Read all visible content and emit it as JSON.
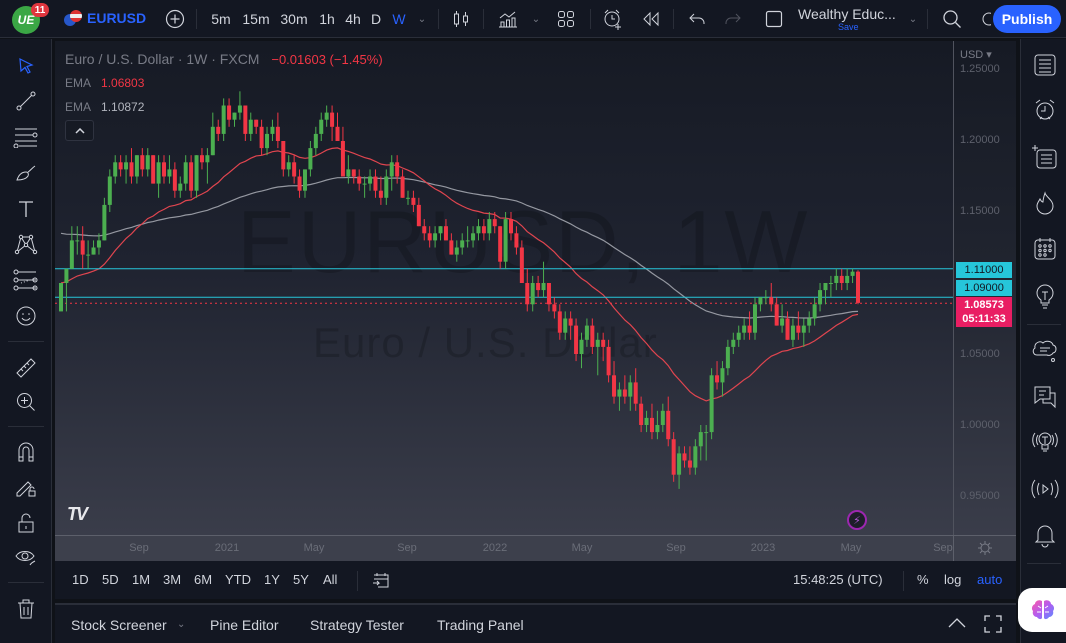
{
  "app": {
    "logo_text": "UE",
    "notifications": "11",
    "symbol": "EURUSD",
    "intervals": [
      "5m",
      "15m",
      "30m",
      "1h",
      "4h",
      "D",
      "W"
    ],
    "active_interval": "W",
    "layout_name": "Wealthy Educ...",
    "layout_save": "Save",
    "publish_label": "Publish"
  },
  "legend": {
    "title": "Euro / U.S. Dollar · 1W · FXCM",
    "change": "−0.01603 (−1.45%)",
    "ema1_label": "EMA",
    "ema1_value": "1.06803",
    "ema2_label": "EMA",
    "ema2_value": "1.10872",
    "collapse_glyph": "^"
  },
  "watermark": {
    "line1": "EURUSD, 1W",
    "line2": "Euro / U.S. Dollar"
  },
  "price_axis": {
    "currency": "USD ▾",
    "labels": [
      {
        "text": "1.25000",
        "y": 29
      },
      {
        "text": "1.20000",
        "y": 100
      },
      {
        "text": "1.15000",
        "y": 171
      },
      {
        "text": "1.05000",
        "y": 314
      },
      {
        "text": "1.00000",
        "y": 385
      },
      {
        "text": "0.95000",
        "y": 456
      }
    ],
    "tag_1110": "1.11000",
    "tag_1090": "1.09000",
    "current_price": "1.08573",
    "countdown": "05:11:33"
  },
  "time_axis": {
    "labels": [
      {
        "text": "Sep",
        "x": 84
      },
      {
        "text": "2021",
        "x": 172
      },
      {
        "text": "May",
        "x": 259
      },
      {
        "text": "Sep",
        "x": 352
      },
      {
        "text": "2022",
        "x": 440
      },
      {
        "text": "May",
        "x": 527
      },
      {
        "text": "Sep",
        "x": 621
      },
      {
        "text": "2023",
        "x": 708
      },
      {
        "text": "May",
        "x": 796
      },
      {
        "text": "Sep",
        "x": 888
      }
    ]
  },
  "range_bar": {
    "ranges": [
      "1D",
      "5D",
      "1M",
      "3M",
      "6M",
      "YTD",
      "1Y",
      "5Y",
      "All"
    ],
    "clock": "15:48:25 (UTC)",
    "percent": "%",
    "log": "log",
    "auto": "auto"
  },
  "bottom_panel": {
    "tabs": [
      "Stock Screener",
      "Pine Editor",
      "Strategy Tester",
      "Trading Panel"
    ]
  },
  "colors": {
    "up": "#4caf50",
    "down": "#f23645",
    "ema_fast": "#e0454f",
    "ema_slow": "#9598a1",
    "hline": "#26c6da",
    "accent": "#2962ff",
    "current_price": "#e91e63"
  },
  "chart_data": {
    "type": "candlestick",
    "title": "Euro / U.S. Dollar · 1W · FXCM",
    "ylim": [
      0.93,
      1.26
    ],
    "hlines": [
      1.11,
      1.09
    ],
    "current": 1.08573,
    "ema_fast_last": 1.06803,
    "ema_slow_last": 1.10872,
    "x_ticks": [
      "Sep",
      "2021",
      "May",
      "Sep",
      "2022",
      "May",
      "Sep",
      "2023",
      "May",
      "Sep"
    ],
    "candles": [
      [
        1.08,
        1.1,
        1.08,
        1.1
      ],
      [
        1.1,
        1.11,
        1.08,
        1.11
      ],
      [
        1.11,
        1.14,
        1.11,
        1.13
      ],
      [
        1.13,
        1.14,
        1.12,
        1.13
      ],
      [
        1.13,
        1.14,
        1.11,
        1.12
      ],
      [
        1.12,
        1.13,
        1.11,
        1.12
      ],
      [
        1.12,
        1.13,
        1.12,
        1.125
      ],
      [
        1.125,
        1.135,
        1.12,
        1.13
      ],
      [
        1.13,
        1.16,
        1.13,
        1.155
      ],
      [
        1.155,
        1.18,
        1.15,
        1.175
      ],
      [
        1.175,
        1.19,
        1.17,
        1.185
      ],
      [
        1.185,
        1.19,
        1.175,
        1.18
      ],
      [
        1.18,
        1.19,
        1.17,
        1.185
      ],
      [
        1.185,
        1.195,
        1.17,
        1.175
      ],
      [
        1.175,
        1.19,
        1.17,
        1.19
      ],
      [
        1.19,
        1.195,
        1.175,
        1.18
      ],
      [
        1.18,
        1.195,
        1.175,
        1.19
      ],
      [
        1.19,
        1.19,
        1.17,
        1.17
      ],
      [
        1.17,
        1.19,
        1.16,
        1.185
      ],
      [
        1.185,
        1.19,
        1.17,
        1.175
      ],
      [
        1.175,
        1.19,
        1.17,
        1.18
      ],
      [
        1.18,
        1.185,
        1.16,
        1.165
      ],
      [
        1.165,
        1.175,
        1.16,
        1.17
      ],
      [
        1.17,
        1.19,
        1.165,
        1.185
      ],
      [
        1.185,
        1.19,
        1.16,
        1.165
      ],
      [
        1.165,
        1.19,
        1.16,
        1.19
      ],
      [
        1.19,
        1.195,
        1.18,
        1.185
      ],
      [
        1.185,
        1.195,
        1.17,
        1.19
      ],
      [
        1.19,
        1.22,
        1.19,
        1.21
      ],
      [
        1.21,
        1.215,
        1.2,
        1.205
      ],
      [
        1.205,
        1.23,
        1.2,
        1.225
      ],
      [
        1.225,
        1.23,
        1.21,
        1.215
      ],
      [
        1.215,
        1.22,
        1.21,
        1.22
      ],
      [
        1.22,
        1.235,
        1.215,
        1.225
      ],
      [
        1.225,
        1.225,
        1.2,
        1.205
      ],
      [
        1.205,
        1.22,
        1.2,
        1.215
      ],
      [
        1.215,
        1.215,
        1.205,
        1.21
      ],
      [
        1.21,
        1.215,
        1.19,
        1.195
      ],
      [
        1.195,
        1.21,
        1.19,
        1.205
      ],
      [
        1.205,
        1.215,
        1.2,
        1.21
      ],
      [
        1.21,
        1.22,
        1.195,
        1.2
      ],
      [
        1.2,
        1.2,
        1.175,
        1.18
      ],
      [
        1.18,
        1.19,
        1.175,
        1.185
      ],
      [
        1.185,
        1.19,
        1.17,
        1.175
      ],
      [
        1.175,
        1.18,
        1.16,
        1.165
      ],
      [
        1.165,
        1.18,
        1.16,
        1.18
      ],
      [
        1.18,
        1.2,
        1.175,
        1.195
      ],
      [
        1.195,
        1.21,
        1.19,
        1.205
      ],
      [
        1.205,
        1.22,
        1.2,
        1.215
      ],
      [
        1.215,
        1.225,
        1.21,
        1.22
      ],
      [
        1.22,
        1.225,
        1.2,
        1.21
      ],
      [
        1.21,
        1.22,
        1.2,
        1.2
      ],
      [
        1.2,
        1.21,
        1.175,
        1.175
      ],
      [
        1.175,
        1.19,
        1.17,
        1.18
      ],
      [
        1.18,
        1.18,
        1.17,
        1.175
      ],
      [
        1.175,
        1.18,
        1.165,
        1.17
      ],
      [
        1.17,
        1.175,
        1.16,
        1.17
      ],
      [
        1.17,
        1.18,
        1.165,
        1.175
      ],
      [
        1.175,
        1.18,
        1.16,
        1.165
      ],
      [
        1.165,
        1.175,
        1.155,
        1.16
      ],
      [
        1.16,
        1.18,
        1.155,
        1.175
      ],
      [
        1.175,
        1.19,
        1.165,
        1.185
      ],
      [
        1.185,
        1.19,
        1.17,
        1.175
      ],
      [
        1.175,
        1.18,
        1.16,
        1.16
      ],
      [
        1.16,
        1.165,
        1.155,
        1.16
      ],
      [
        1.16,
        1.165,
        1.15,
        1.155
      ],
      [
        1.155,
        1.16,
        1.14,
        1.14
      ],
      [
        1.14,
        1.145,
        1.13,
        1.135
      ],
      [
        1.135,
        1.14,
        1.125,
        1.13
      ],
      [
        1.13,
        1.14,
        1.125,
        1.135
      ],
      [
        1.135,
        1.14,
        1.13,
        1.14
      ],
      [
        1.14,
        1.145,
        1.13,
        1.13
      ],
      [
        1.13,
        1.135,
        1.12,
        1.12
      ],
      [
        1.12,
        1.13,
        1.115,
        1.125
      ],
      [
        1.125,
        1.135,
        1.12,
        1.13
      ],
      [
        1.13,
        1.14,
        1.125,
        1.13
      ],
      [
        1.13,
        1.14,
        1.125,
        1.135
      ],
      [
        1.135,
        1.145,
        1.13,
        1.14
      ],
      [
        1.14,
        1.145,
        1.13,
        1.135
      ],
      [
        1.135,
        1.15,
        1.13,
        1.145
      ],
      [
        1.145,
        1.15,
        1.135,
        1.14
      ],
      [
        1.14,
        1.14,
        1.11,
        1.115
      ],
      [
        1.115,
        1.15,
        1.11,
        1.145
      ],
      [
        1.145,
        1.15,
        1.13,
        1.135
      ],
      [
        1.135,
        1.14,
        1.12,
        1.125
      ],
      [
        1.125,
        1.13,
        1.1,
        1.1
      ],
      [
        1.1,
        1.11,
        1.08,
        1.085
      ],
      [
        1.085,
        1.105,
        1.08,
        1.1
      ],
      [
        1.1,
        1.105,
        1.09,
        1.095
      ],
      [
        1.095,
        1.115,
        1.09,
        1.1
      ],
      [
        1.1,
        1.1,
        1.08,
        1.085
      ],
      [
        1.085,
        1.09,
        1.075,
        1.08
      ],
      [
        1.08,
        1.085,
        1.06,
        1.065
      ],
      [
        1.065,
        1.08,
        1.06,
        1.075
      ],
      [
        1.075,
        1.08,
        1.06,
        1.07
      ],
      [
        1.07,
        1.075,
        1.045,
        1.05
      ],
      [
        1.05,
        1.065,
        1.04,
        1.06
      ],
      [
        1.06,
        1.075,
        1.055,
        1.07
      ],
      [
        1.07,
        1.075,
        1.05,
        1.055
      ],
      [
        1.055,
        1.065,
        1.035,
        1.06
      ],
      [
        1.06,
        1.065,
        1.045,
        1.055
      ],
      [
        1.055,
        1.06,
        1.03,
        1.035
      ],
      [
        1.035,
        1.045,
        1.015,
        1.02
      ],
      [
        1.02,
        1.03,
        1.01,
        1.025
      ],
      [
        1.025,
        1.035,
        1.015,
        1.02
      ],
      [
        1.02,
        1.035,
        1.01,
        1.03
      ],
      [
        1.03,
        1.04,
        1.01,
        1.015
      ],
      [
        1.015,
        1.02,
        0.995,
        1.0
      ],
      [
        1.0,
        1.01,
        0.995,
        1.005
      ],
      [
        1.005,
        1.015,
        0.99,
        0.995
      ],
      [
        0.995,
        1.01,
        0.99,
        1.0
      ],
      [
        1.0,
        1.015,
        0.995,
        1.01
      ],
      [
        1.01,
        1.02,
        0.985,
        0.99
      ],
      [
        0.99,
        0.995,
        0.96,
        0.965
      ],
      [
        0.965,
        0.985,
        0.955,
        0.98
      ],
      [
        0.98,
        0.985,
        0.97,
        0.975
      ],
      [
        0.975,
        0.985,
        0.965,
        0.97
      ],
      [
        0.97,
        0.99,
        0.965,
        0.985
      ],
      [
        0.985,
        1.0,
        0.975,
        0.995
      ],
      [
        0.995,
        1.0,
        0.975,
        0.995
      ],
      [
        0.995,
        1.04,
        0.99,
        1.035
      ],
      [
        1.035,
        1.045,
        1.025,
        1.03
      ],
      [
        1.03,
        1.045,
        1.02,
        1.04
      ],
      [
        1.04,
        1.06,
        1.035,
        1.055
      ],
      [
        1.055,
        1.065,
        1.05,
        1.06
      ],
      [
        1.06,
        1.07,
        1.055,
        1.065
      ],
      [
        1.065,
        1.075,
        1.06,
        1.07
      ],
      [
        1.07,
        1.08,
        1.06,
        1.065
      ],
      [
        1.065,
        1.09,
        1.06,
        1.085
      ],
      [
        1.085,
        1.09,
        1.08,
        1.09
      ],
      [
        1.09,
        1.095,
        1.085,
        1.09
      ],
      [
        1.09,
        1.1,
        1.08,
        1.085
      ],
      [
        1.085,
        1.09,
        1.07,
        1.07
      ],
      [
        1.07,
        1.085,
        1.065,
        1.075
      ],
      [
        1.075,
        1.08,
        1.06,
        1.06
      ],
      [
        1.06,
        1.075,
        1.055,
        1.07
      ],
      [
        1.07,
        1.08,
        1.06,
        1.065
      ],
      [
        1.065,
        1.075,
        1.055,
        1.07
      ],
      [
        1.07,
        1.08,
        1.065,
        1.075
      ],
      [
        1.075,
        1.09,
        1.07,
        1.085
      ],
      [
        1.085,
        1.1,
        1.08,
        1.095
      ],
      [
        1.095,
        1.1,
        1.085,
        1.1
      ],
      [
        1.1,
        1.105,
        1.09,
        1.1
      ],
      [
        1.1,
        1.11,
        1.095,
        1.105
      ],
      [
        1.105,
        1.11,
        1.095,
        1.1
      ],
      [
        1.1,
        1.11,
        1.095,
        1.105
      ],
      [
        1.105,
        1.11,
        1.1,
        1.108
      ],
      [
        1.108,
        1.109,
        1.085,
        1.086
      ]
    ]
  },
  "right_sidebar": {
    "tools": [
      "watchlist",
      "alerts",
      "object-tree",
      "hotlists",
      "calendar",
      "ideas",
      "chats",
      "streams",
      "ideas-stream",
      "live-stream",
      "notifications"
    ]
  }
}
